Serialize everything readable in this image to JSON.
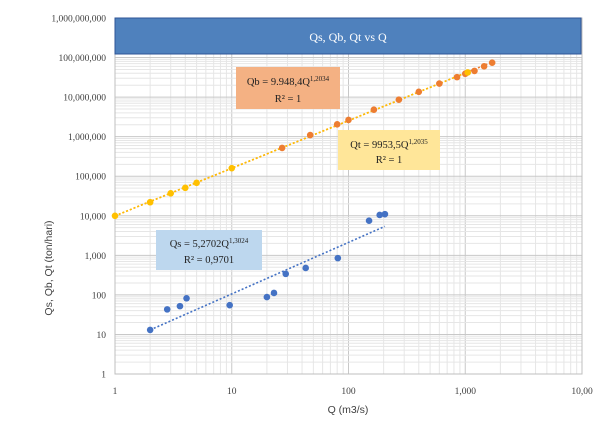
{
  "chart_data": {
    "type": "scatter",
    "title": "Qs, Qb, Qt vs Q",
    "xlabel": "Q (m3/s)",
    "ylabel": "Qs, Qb, Qt (ton/hari)",
    "x_scale": "log",
    "y_scale": "log",
    "xlim": [
      1,
      10000
    ],
    "ylim": [
      1,
      1000000000
    ],
    "grid": true,
    "x_ticks": [
      "1",
      "10",
      "100",
      "1,000",
      "10,00"
    ],
    "y_ticks": [
      "1",
      "10",
      "100",
      "1,000",
      "10,000",
      "100,000",
      "1,000,000",
      "10,000,000",
      "100,000,000",
      "1,000,000,000"
    ],
    "colors": {
      "title_band": "#4f81bd",
      "qs": "#4472c4",
      "qb": "#ed7d31",
      "qt": "#ffc000",
      "qb_label_bg": "#f4b183",
      "qt_label_bg": "#ffe699",
      "qs_label_bg": "#bdd7ee"
    },
    "series": [
      {
        "key": "qs",
        "points": [
          [
            2,
            13
          ],
          [
            2.8,
            43
          ],
          [
            3.6,
            52
          ],
          [
            4.1,
            82
          ],
          [
            9.6,
            55
          ],
          [
            20,
            88
          ],
          [
            23,
            112
          ],
          [
            29,
            340
          ],
          [
            43,
            480
          ],
          [
            81,
            850
          ],
          [
            150,
            7500
          ],
          [
            185,
            10500
          ],
          [
            205,
            11000
          ]
        ],
        "trendline": {
          "a": 5.2702,
          "b": 1.3024,
          "x_range": [
            2,
            205
          ]
        },
        "equation_main": "Qs = 5,2702Q",
        "equation_exp": "1,3024",
        "r2": "R² = 0,9701"
      },
      {
        "key": "qb",
        "points": [
          [
            27,
            520000
          ],
          [
            47,
            1100000
          ],
          [
            80,
            2050000
          ],
          [
            100,
            2650000
          ],
          [
            165,
            4800000
          ],
          [
            270,
            8600000
          ],
          [
            400,
            13600000
          ],
          [
            600,
            22000000
          ],
          [
            850,
            32000000
          ],
          [
            1000,
            39000000
          ],
          [
            1200,
            46000000
          ],
          [
            1450,
            60000000
          ],
          [
            1700,
            74000000
          ]
        ],
        "trendline": {
          "a": 9948.4,
          "b": 1.2034,
          "x_range": [
            1,
            1750
          ]
        },
        "equation_main": "Qb = 9.948,4Q",
        "equation_exp": "1,2034",
        "r2": "R² = 1"
      },
      {
        "key": "qt",
        "points": [
          [
            1,
            10000
          ],
          [
            2,
            22000
          ],
          [
            3,
            37000
          ],
          [
            4,
            51000
          ],
          [
            5,
            68000
          ],
          [
            10,
            160000
          ],
          [
            1050,
            42000000
          ]
        ],
        "trendline": {
          "a": 9953.5,
          "b": 1.2035,
          "x_range": [
            1,
            1100
          ]
        },
        "equation_main": "Qt = 9953,5Q",
        "equation_exp": "1,2035",
        "r2": "R² = 1"
      }
    ]
  }
}
